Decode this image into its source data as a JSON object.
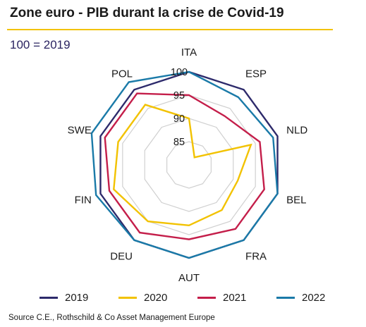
{
  "title": "Zone euro - PIB durant la crise de Covid-19",
  "subtitle": "100 = 2019",
  "source": "Source C.E., Rothschild  & Co Asset Management Europe",
  "chart_data": {
    "type": "radar",
    "axes": [
      "ITA",
      "ESP",
      "NLD",
      "BEL",
      "FRA",
      "AUT",
      "DEU",
      "FIN",
      "SWE",
      "POL"
    ],
    "ticks": [
      85,
      90,
      95,
      100
    ],
    "range": [
      80,
      102
    ],
    "grid": true,
    "legend_position": "bottom",
    "series": [
      {
        "name": "2019",
        "color": "#2d2a6b",
        "values": [
          100,
          100,
          100,
          100,
          100,
          100,
          100,
          100,
          100,
          100
        ]
      },
      {
        "name": "2020",
        "color": "#f2c200",
        "values": [
          90,
          82,
          94,
          91,
          92,
          93,
          95,
          97,
          96,
          96
        ]
      },
      {
        "name": "2021",
        "color": "#c41e4a",
        "values": [
          95,
          93,
          96,
          97,
          97,
          96,
          98,
          98,
          99,
          99
        ]
      },
      {
        "name": "2022",
        "color": "#1a7aa8",
        "values": [
          100,
          98,
          99,
          100,
          100,
          100,
          100,
          101,
          102,
          102
        ]
      }
    ]
  }
}
